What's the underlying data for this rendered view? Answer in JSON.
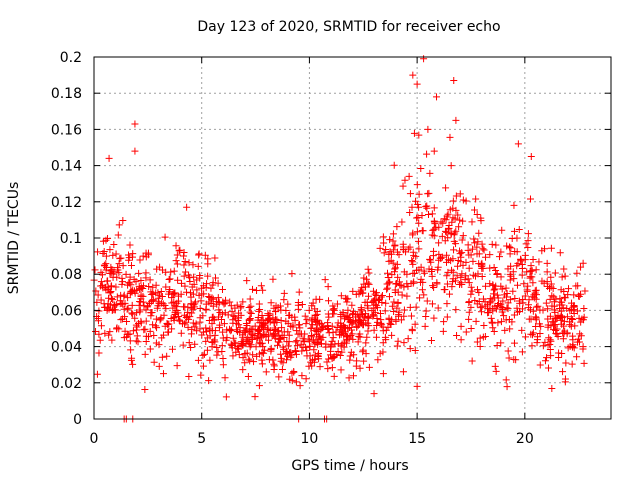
{
  "chart_data": {
    "type": "scatter",
    "title": "Day 123 of 2020, SRMTID for receiver echo",
    "xlabel": "GPS time / hours",
    "ylabel": "SRMTID / TECUs",
    "xlim": [
      0,
      24
    ],
    "ylim": [
      0,
      0.2
    ],
    "xticks": [
      0,
      5,
      10,
      15,
      20
    ],
    "xtick_labels": [
      "0",
      "5",
      "10",
      "15",
      "20"
    ],
    "yticks": [
      0,
      0.02,
      0.04,
      0.06,
      0.08,
      0.1,
      0.12,
      0.14,
      0.16,
      0.18,
      0.2
    ],
    "ytick_labels": [
      "0",
      "0.02",
      "0.04",
      "0.06",
      "0.08",
      "0.1",
      "0.12",
      "0.14",
      "0.16",
      "0.18",
      "0.2"
    ],
    "grid": true,
    "marker": "+",
    "color": "#ff0000",
    "trend": [
      {
        "x": 0.0,
        "y": 0.065
      },
      {
        "x": 1.0,
        "y": 0.072
      },
      {
        "x": 2.0,
        "y": 0.065
      },
      {
        "x": 3.0,
        "y": 0.062
      },
      {
        "x": 4.0,
        "y": 0.068
      },
      {
        "x": 5.0,
        "y": 0.063
      },
      {
        "x": 6.0,
        "y": 0.048
      },
      {
        "x": 7.0,
        "y": 0.046
      },
      {
        "x": 8.0,
        "y": 0.048
      },
      {
        "x": 9.0,
        "y": 0.043
      },
      {
        "x": 10.0,
        "y": 0.046
      },
      {
        "x": 11.0,
        "y": 0.047
      },
      {
        "x": 12.0,
        "y": 0.053
      },
      {
        "x": 13.0,
        "y": 0.06
      },
      {
        "x": 14.0,
        "y": 0.072
      },
      {
        "x": 15.0,
        "y": 0.095
      },
      {
        "x": 16.0,
        "y": 0.095
      },
      {
        "x": 17.0,
        "y": 0.092
      },
      {
        "x": 18.0,
        "y": 0.075
      },
      {
        "x": 19.0,
        "y": 0.06
      },
      {
        "x": 20.0,
        "y": 0.075
      },
      {
        "x": 21.0,
        "y": 0.058
      },
      {
        "x": 22.0,
        "y": 0.052
      },
      {
        "x": 22.8,
        "y": 0.055
      }
    ],
    "spread": [
      {
        "x": 0.0,
        "s": 0.016
      },
      {
        "x": 5.0,
        "s": 0.016
      },
      {
        "x": 6.0,
        "s": 0.011
      },
      {
        "x": 11.0,
        "s": 0.011
      },
      {
        "x": 13.0,
        "s": 0.014
      },
      {
        "x": 15.0,
        "s": 0.026
      },
      {
        "x": 16.0,
        "s": 0.022
      },
      {
        "x": 18.0,
        "s": 0.018
      },
      {
        "x": 20.0,
        "s": 0.018
      },
      {
        "x": 22.8,
        "s": 0.013
      }
    ],
    "point_count": 1700,
    "x_range_of_points": [
      0.0,
      22.8
    ],
    "outliers": [
      {
        "x": 15.3,
        "y": 0.199
      },
      {
        "x": 14.8,
        "y": 0.19
      },
      {
        "x": 16.7,
        "y": 0.187
      },
      {
        "x": 15.0,
        "y": 0.185
      },
      {
        "x": 15.9,
        "y": 0.178
      },
      {
        "x": 1.9,
        "y": 0.163
      },
      {
        "x": 16.8,
        "y": 0.165
      },
      {
        "x": 15.5,
        "y": 0.16
      },
      {
        "x": 19.7,
        "y": 0.152
      },
      {
        "x": 1.9,
        "y": 0.148
      },
      {
        "x": 20.3,
        "y": 0.145
      },
      {
        "x": 0.7,
        "y": 0.144
      },
      {
        "x": 4.3,
        "y": 0.117
      },
      {
        "x": 15.0,
        "y": 0.018
      },
      {
        "x": 13.0,
        "y": 0.014
      },
      {
        "x": 1.4,
        "y": 0.0
      },
      {
        "x": 1.5,
        "y": 0.0
      },
      {
        "x": 1.8,
        "y": 0.0
      },
      {
        "x": 9.5,
        "y": 0.0
      },
      {
        "x": 10.7,
        "y": 0.0
      },
      {
        "x": 10.8,
        "y": 0.0
      }
    ]
  }
}
